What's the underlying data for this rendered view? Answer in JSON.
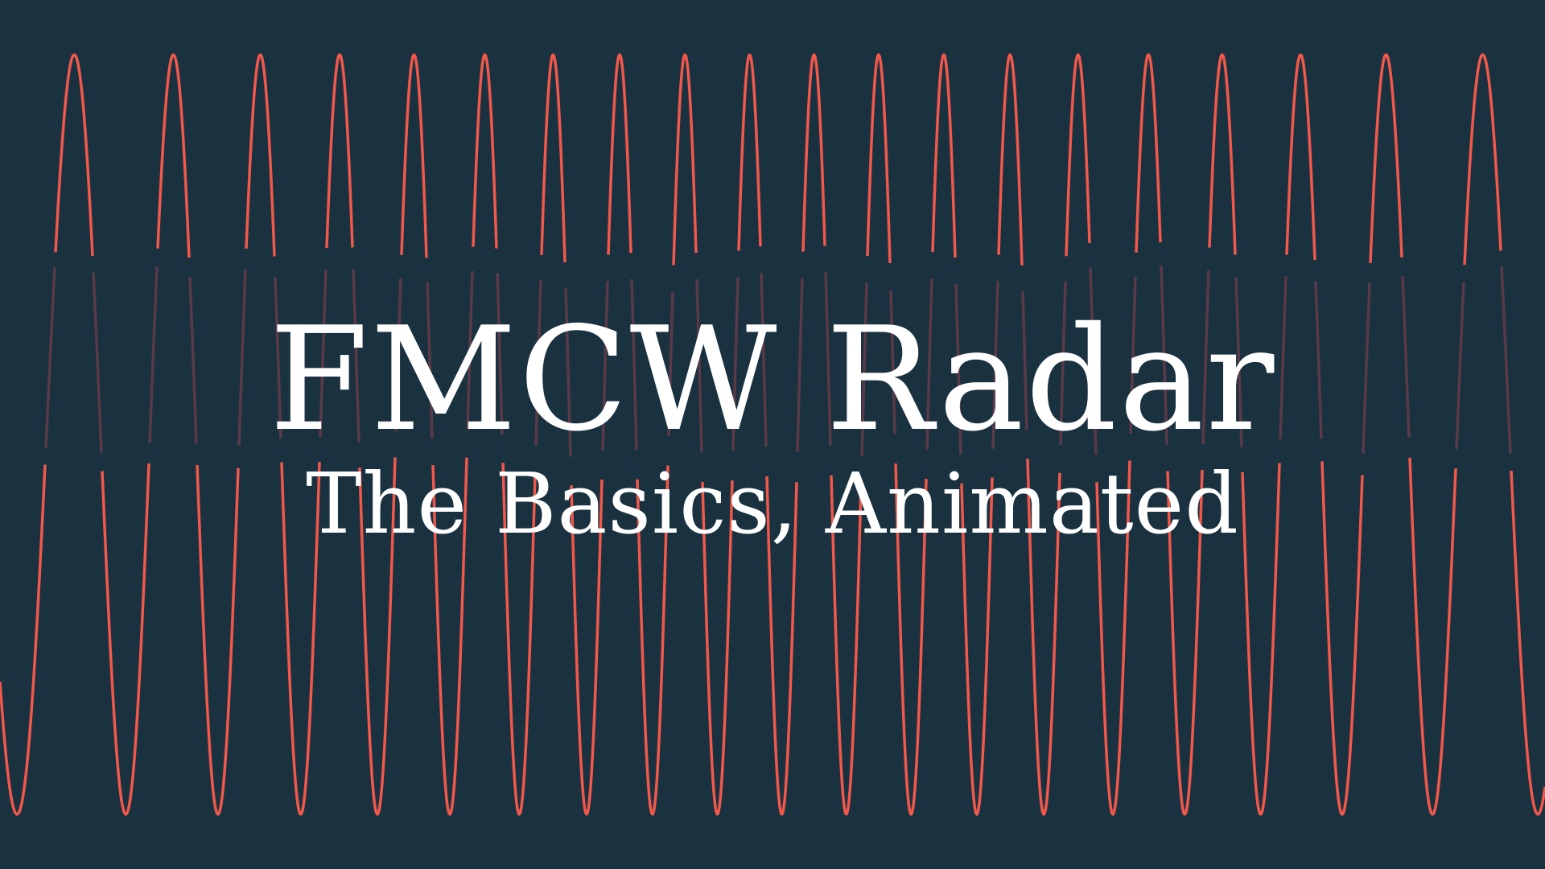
{
  "title": "FMCW Radar",
  "subtitle": "The Basics, Animated",
  "colors": {
    "background": "#1a3140",
    "chirp": "#f0584b",
    "chirp_dim": "#5a3a48",
    "text": "#ffffff"
  },
  "chirp_signal": {
    "description_type": "frequency-modulated chirp (frequency rises to center, then falls)"
  }
}
